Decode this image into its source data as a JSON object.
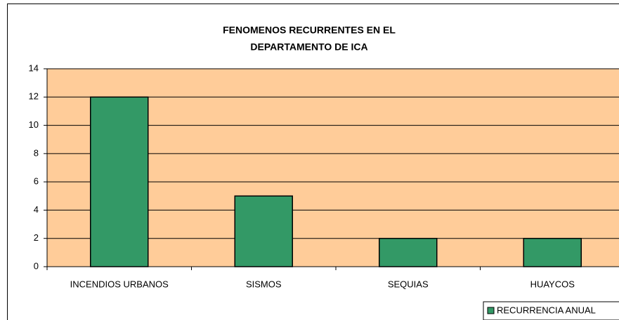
{
  "chart_data": {
    "type": "bar",
    "title": [
      "FENOMENOS RECURRENTES EN EL",
      "DEPARTAMENTO DE ICA"
    ],
    "categories": [
      "INCENDIOS URBANOS",
      "SISMOS",
      "SEQUIAS",
      "HUAYCOS"
    ],
    "series": [
      {
        "name": "RECURRENCIA ANUAL",
        "color": "#339966",
        "values": [
          12,
          5,
          2,
          2
        ]
      }
    ],
    "ylim": [
      0,
      14
    ],
    "yticks": [
      0,
      2,
      4,
      6,
      8,
      10,
      12,
      14
    ],
    "grid": true,
    "plot_background": "#ffcc99",
    "legend": "bottom-right"
  }
}
